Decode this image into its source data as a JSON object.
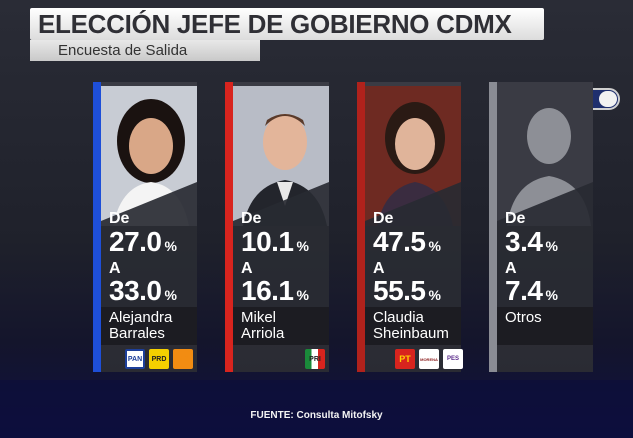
{
  "header": {
    "title": "ELECCIÓN JEFE DE GOBIERNO CDMX",
    "subtitle": "Encuesta de Salida"
  },
  "candidates": [
    {
      "from_label": "De",
      "from_value": "27.0",
      "to_label": "A",
      "to_value": "33.0",
      "unit": "%",
      "name_line1": "Alejandra",
      "name_line2": "Barrales",
      "stripe_color": "#1e4fd8",
      "party_logos": [
        "PAN",
        "PRD",
        "MC"
      ]
    },
    {
      "from_label": "De",
      "from_value": "10.1",
      "to_label": "A",
      "to_value": "16.1",
      "unit": "%",
      "name_line1": "Mikel",
      "name_line2": "Arriola",
      "stripe_color": "#d8241e",
      "party_logos": [
        "PRI"
      ]
    },
    {
      "from_label": "De",
      "from_value": "47.5",
      "to_label": "A",
      "to_value": "55.5",
      "unit": "%",
      "name_line1": "Claudia",
      "name_line2": "Sheinbaum",
      "stripe_color": "#b0221c",
      "party_logos": [
        "PT",
        "MORENA",
        "PES"
      ]
    },
    {
      "from_label": "De",
      "from_value": "3.4",
      "to_label": "A",
      "to_value": "7.4",
      "unit": "%",
      "name_line1": "Otros",
      "name_line2": "",
      "stripe_color": "#8a8c94",
      "party_logos": []
    }
  ],
  "footer": {
    "source": "FUENTE: Consulta Mitofsky"
  }
}
